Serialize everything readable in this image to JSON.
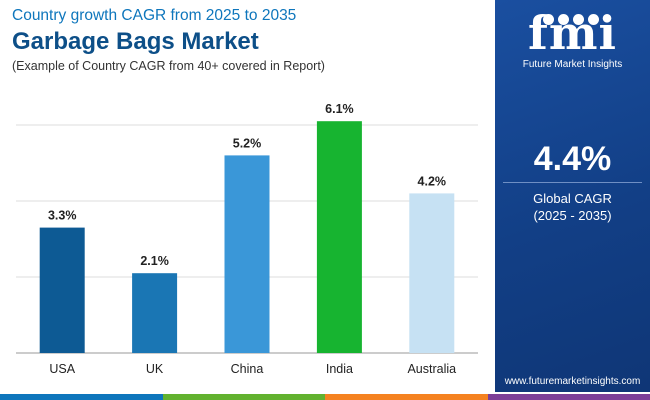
{
  "header": {
    "subtitle": "Country growth CAGR from 2025 to 2035",
    "title": "Garbage Bags Market",
    "note": "(Example of Country CAGR from 40+ covered in Report)"
  },
  "chart_data": {
    "type": "bar",
    "categories": [
      "USA",
      "UK",
      "China",
      "India",
      "Australia"
    ],
    "values": [
      3.3,
      2.1,
      5.2,
      6.1,
      4.2
    ],
    "value_labels": [
      "3.3%",
      "2.1%",
      "5.2%",
      "6.1%",
      "4.2%"
    ],
    "bar_colors": [
      "#0d5a94",
      "#1a76b4",
      "#3a97d8",
      "#17b430",
      "#c6e1f3"
    ],
    "ylim": [
      0,
      7
    ],
    "grid": true,
    "title": "",
    "xlabel": "",
    "ylabel": ""
  },
  "side_panel": {
    "logo_text": "fmi",
    "logo_subtitle": "Future Market Insights",
    "value": "4.4%",
    "label_line1": "Global CAGR",
    "label_line2": "(2025 - 2035)",
    "website": "www.futuremarketinsights.com"
  },
  "colors": {
    "title": "#0d4f88",
    "subtitle": "#0e76bc",
    "panel": "#123f86",
    "bottom_bar": [
      "#0e76bc",
      "#62b22f",
      "#f58220",
      "#7d3f98"
    ]
  }
}
